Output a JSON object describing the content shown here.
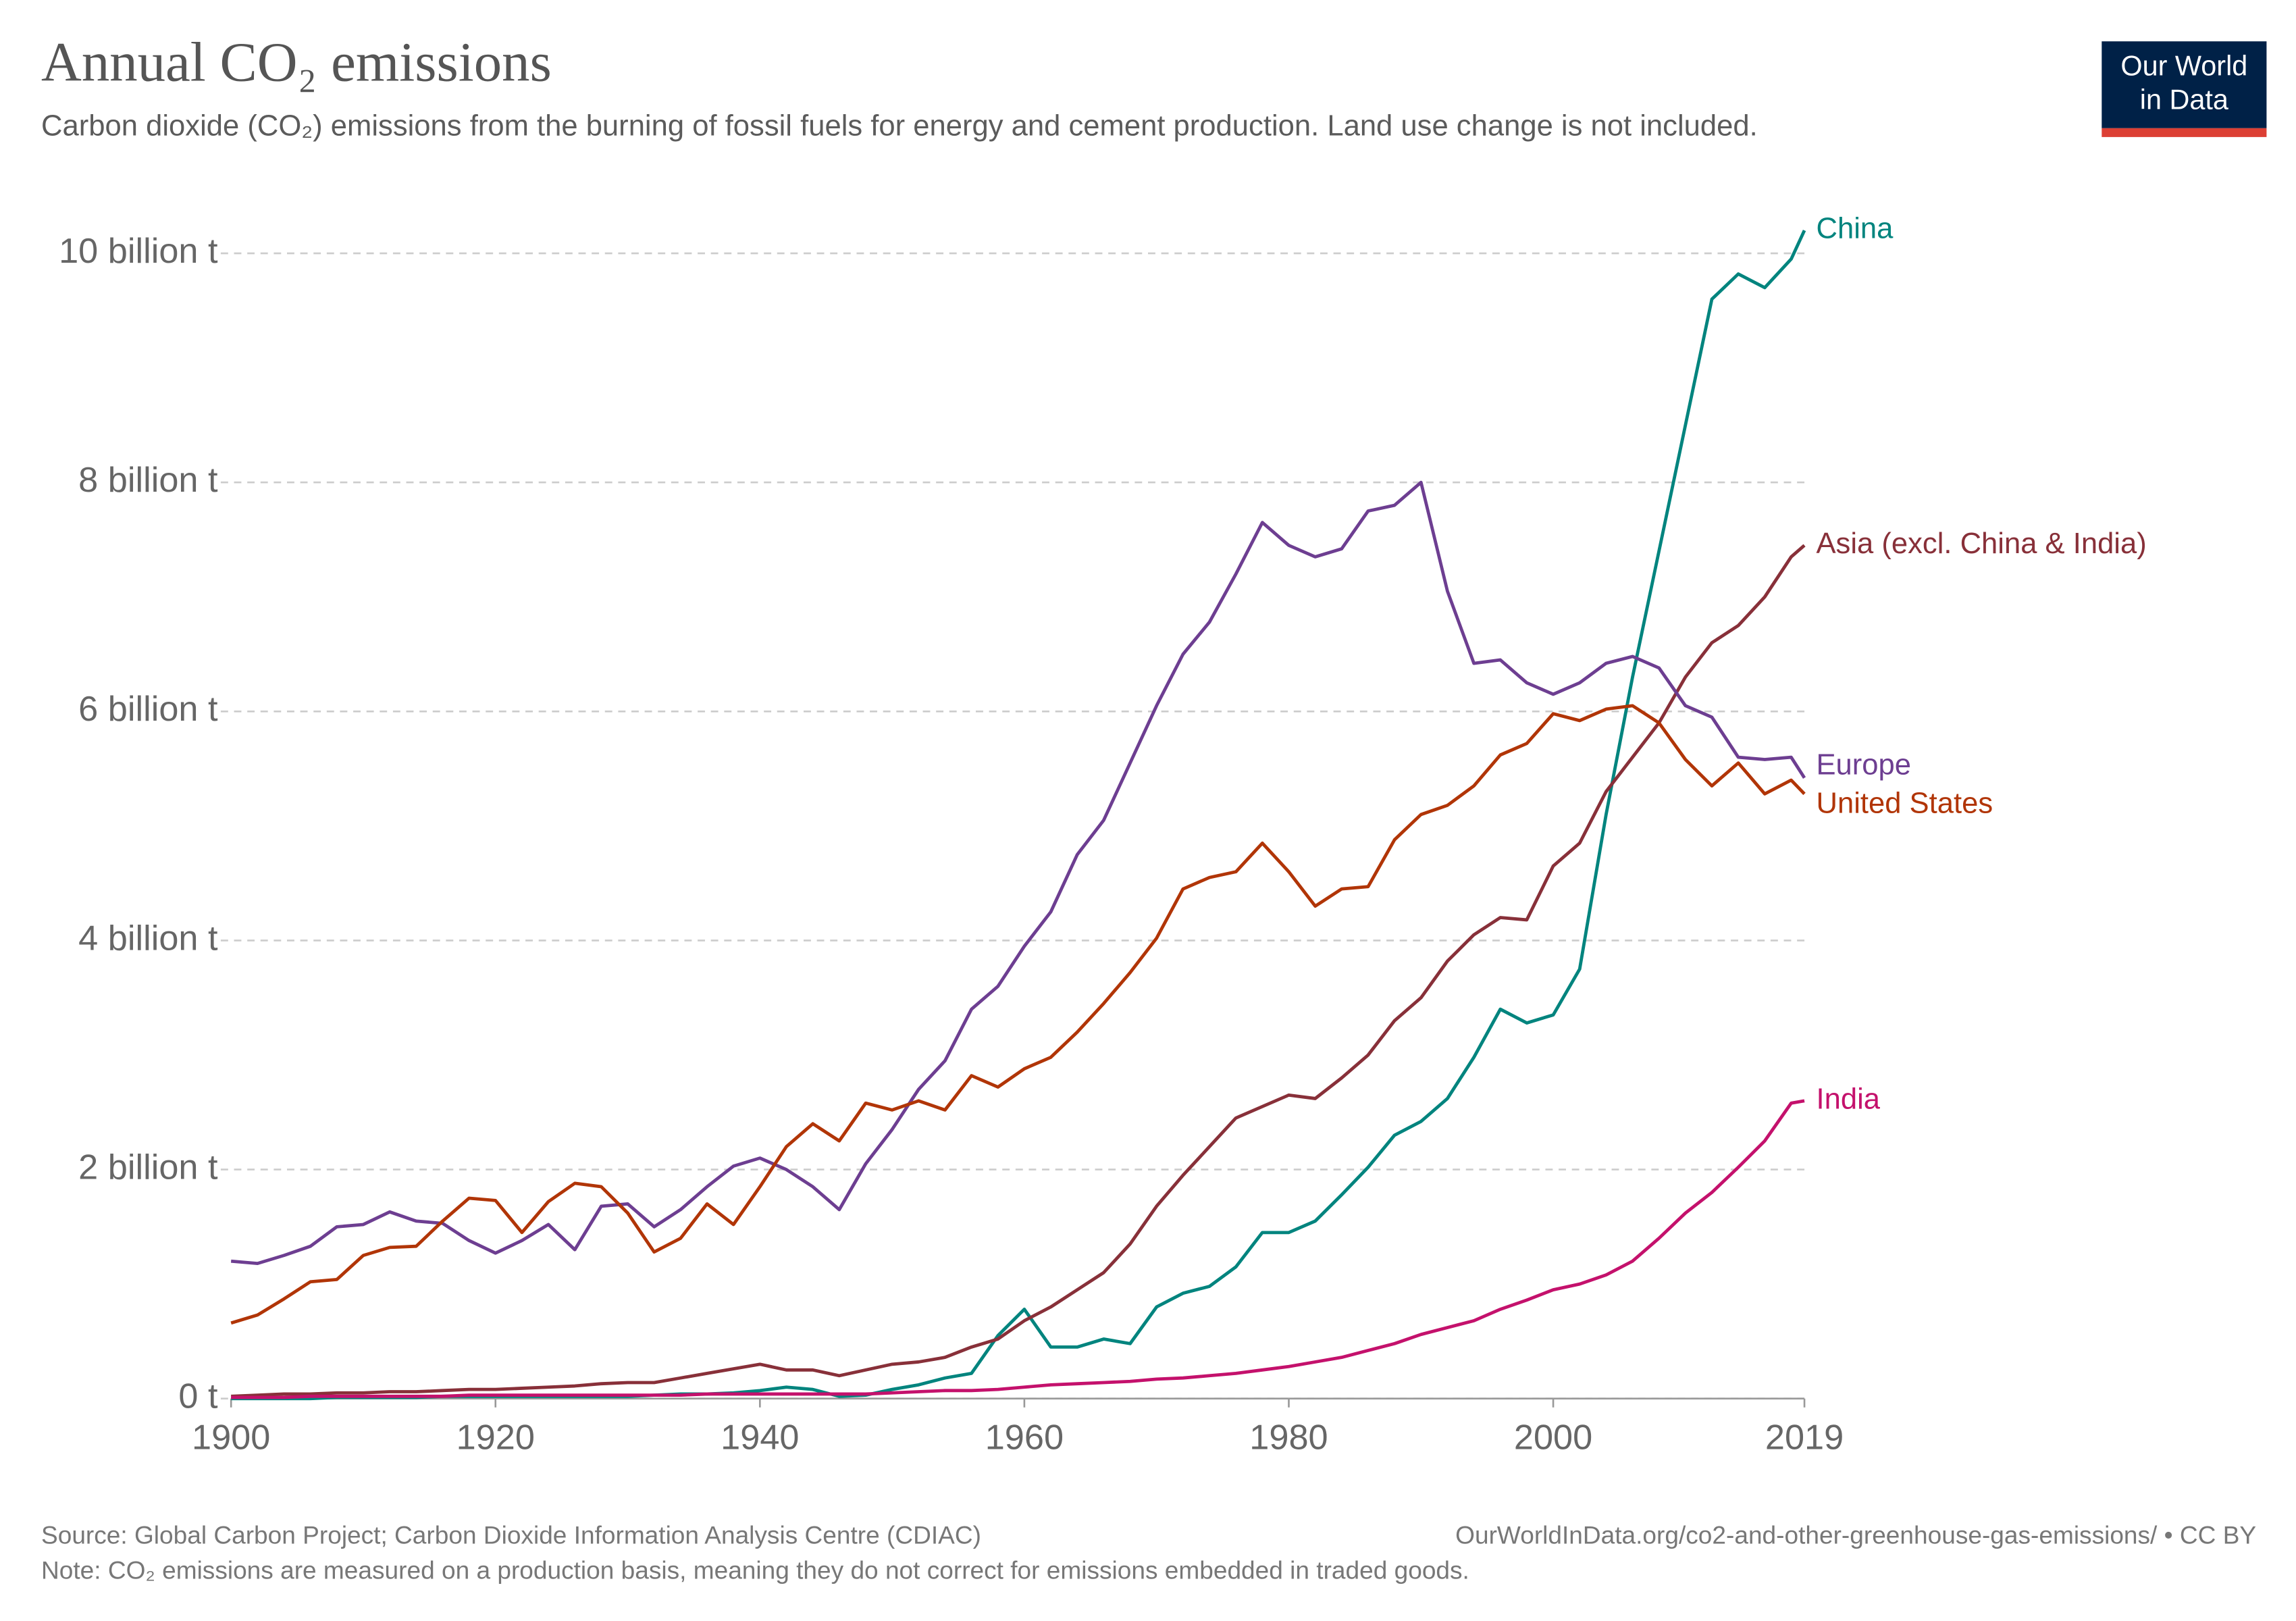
{
  "chart_data": {
    "type": "line",
    "title": "Annual CO₂ emissions",
    "subtitle": "Carbon dioxide (CO₂) emissions from the burning of fossil fuels for energy and cement production. Land use change is not included.",
    "logo": [
      "Our World",
      "in Data"
    ],
    "source": "Source: Global Carbon Project; Carbon Dioxide Information Analysis Centre (CDIAC)",
    "url": "OurWorldInData.org/co2-and-other-greenhouse-gas-emissions/ • CC BY",
    "note": "Note: CO₂ emissions are measured on a production basis, meaning they do not correct for emissions embedded in traded goods.",
    "grid": true,
    "x": [
      1900,
      1902,
      1904,
      1906,
      1908,
      1910,
      1912,
      1914,
      1916,
      1918,
      1920,
      1922,
      1924,
      1926,
      1928,
      1930,
      1932,
      1934,
      1936,
      1938,
      1940,
      1942,
      1944,
      1946,
      1948,
      1950,
      1952,
      1954,
      1956,
      1958,
      1960,
      1962,
      1964,
      1966,
      1968,
      1970,
      1972,
      1974,
      1976,
      1978,
      1980,
      1982,
      1984,
      1986,
      1988,
      1990,
      1992,
      1994,
      1996,
      1998,
      2000,
      2002,
      2004,
      2006,
      2008,
      2010,
      2012,
      2014,
      2016,
      2018,
      2019
    ],
    "xlim": [
      1900,
      2019
    ],
    "xticks": [
      1900,
      1920,
      1940,
      1960,
      1980,
      2000,
      2019
    ],
    "ylim": [
      0,
      10.25
    ],
    "yticks": [
      {
        "value": 0,
        "label": "0 t"
      },
      {
        "value": 2,
        "label": "2 billion t"
      },
      {
        "value": 4,
        "label": "4 billion t"
      },
      {
        "value": 6,
        "label": "6 billion t"
      },
      {
        "value": 8,
        "label": "8 billion t"
      },
      {
        "value": 10,
        "label": "10 billion t"
      }
    ],
    "series": [
      {
        "name": "China",
        "color": "#00847e",
        "values": [
          0,
          0,
          0,
          0,
          0.01,
          0.01,
          0.01,
          0.01,
          0.02,
          0.02,
          0.02,
          0.02,
          0.02,
          0.02,
          0.02,
          0.02,
          0.03,
          0.04,
          0.04,
          0.05,
          0.07,
          0.1,
          0.08,
          0.02,
          0.03,
          0.08,
          0.12,
          0.18,
          0.22,
          0.55,
          0.78,
          0.45,
          0.45,
          0.52,
          0.48,
          0.8,
          0.92,
          0.98,
          1.15,
          1.45,
          1.45,
          1.55,
          1.78,
          2.02,
          2.3,
          2.42,
          2.62,
          2.98,
          3.4,
          3.28,
          3.35,
          3.75,
          5.1,
          6.3,
          7.4,
          8.5,
          9.6,
          9.82,
          9.7,
          9.95,
          10.2
        ]
      },
      {
        "name": "Asia (excl. China & India)",
        "color": "#883039",
        "values": [
          0.02,
          0.03,
          0.04,
          0.04,
          0.05,
          0.05,
          0.06,
          0.06,
          0.07,
          0.08,
          0.08,
          0.09,
          0.1,
          0.11,
          0.13,
          0.14,
          0.14,
          0.18,
          0.22,
          0.26,
          0.3,
          0.25,
          0.25,
          0.2,
          0.25,
          0.3,
          0.32,
          0.36,
          0.45,
          0.52,
          0.68,
          0.8,
          0.95,
          1.1,
          1.35,
          1.68,
          1.95,
          2.2,
          2.45,
          2.55,
          2.65,
          2.62,
          2.8,
          3.0,
          3.3,
          3.5,
          3.82,
          4.05,
          4.2,
          4.18,
          4.65,
          4.85,
          5.3,
          5.6,
          5.9,
          6.3,
          6.6,
          6.75,
          7.0,
          7.35,
          7.45
        ]
      },
      {
        "name": "Europe",
        "color": "#6d3e91",
        "values": [
          1.2,
          1.18,
          1.25,
          1.33,
          1.5,
          1.52,
          1.63,
          1.55,
          1.53,
          1.38,
          1.27,
          1.38,
          1.52,
          1.3,
          1.68,
          1.7,
          1.5,
          1.65,
          1.85,
          2.03,
          2.1,
          2.0,
          1.85,
          1.65,
          2.05,
          2.35,
          2.7,
          2.95,
          3.4,
          3.6,
          3.95,
          4.25,
          4.75,
          5.05,
          5.55,
          6.05,
          6.5,
          6.78,
          7.2,
          7.65,
          7.45,
          7.35,
          7.42,
          7.75,
          7.8,
          8.0,
          7.05,
          6.42,
          6.45,
          6.25,
          6.15,
          6.25,
          6.42,
          6.48,
          6.38,
          6.05,
          5.95,
          5.6,
          5.58,
          5.6,
          5.42
        ]
      },
      {
        "name": "United States",
        "color": "#b13507",
        "values": [
          0.66,
          0.73,
          0.87,
          1.02,
          1.04,
          1.25,
          1.32,
          1.33,
          1.55,
          1.75,
          1.73,
          1.45,
          1.72,
          1.88,
          1.85,
          1.62,
          1.28,
          1.4,
          1.7,
          1.52,
          1.85,
          2.2,
          2.4,
          2.25,
          2.58,
          2.52,
          2.6,
          2.52,
          2.82,
          2.72,
          2.88,
          2.98,
          3.2,
          3.45,
          3.72,
          4.02,
          4.45,
          4.55,
          4.6,
          4.85,
          4.6,
          4.3,
          4.45,
          4.47,
          4.88,
          5.1,
          5.18,
          5.35,
          5.62,
          5.72,
          5.98,
          5.92,
          6.02,
          6.05,
          5.9,
          5.58,
          5.35,
          5.55,
          5.28,
          5.4,
          5.28
        ]
      },
      {
        "name": "India",
        "color": "#c4116c",
        "values": [
          0.01,
          0.01,
          0.01,
          0.02,
          0.02,
          0.02,
          0.02,
          0.02,
          0.02,
          0.03,
          0.03,
          0.03,
          0.03,
          0.03,
          0.03,
          0.03,
          0.03,
          0.03,
          0.04,
          0.04,
          0.04,
          0.04,
          0.04,
          0.04,
          0.04,
          0.05,
          0.06,
          0.07,
          0.07,
          0.08,
          0.1,
          0.12,
          0.13,
          0.14,
          0.15,
          0.17,
          0.18,
          0.2,
          0.22,
          0.25,
          0.28,
          0.32,
          0.36,
          0.42,
          0.48,
          0.56,
          0.62,
          0.68,
          0.78,
          0.86,
          0.95,
          1.0,
          1.08,
          1.2,
          1.4,
          1.62,
          1.8,
          2.02,
          2.25,
          2.58,
          2.6
        ]
      }
    ]
  }
}
